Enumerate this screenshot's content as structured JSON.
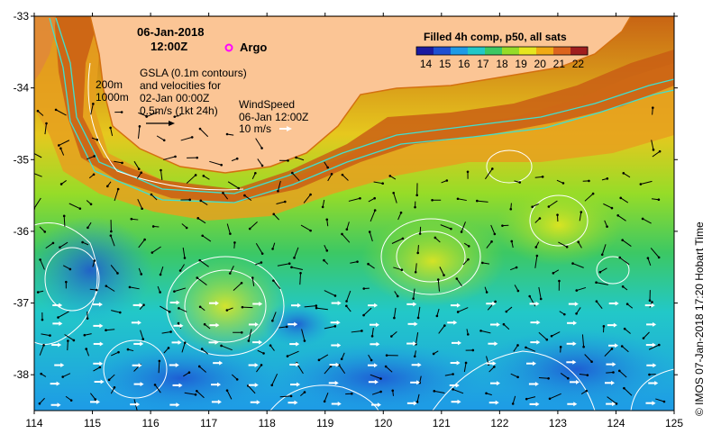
{
  "map": {
    "date": "06-Jan-2018",
    "time": "12:00Z",
    "argo_label": "Argo",
    "gsla_lines": [
      "GSLA (0.1m contours)",
      "and velocities for",
      "02-Jan 00:00Z",
      "0.5m/s (1kt 24h)"
    ],
    "depth_labels": [
      "200m",
      "1000m"
    ],
    "wind_lines": [
      "WindSpeed",
      "06-Jan 12:00Z",
      "10 m/s"
    ],
    "colorbar_title": "Filled 4h comp, p50, all sats",
    "colorbar_ticks": [
      "14",
      "15",
      "16",
      "17",
      "18",
      "19",
      "20",
      "21",
      "22"
    ],
    "colorbar_colors": [
      "#1a1aa0",
      "#1e50d2",
      "#1e9be6",
      "#22c8c8",
      "#3cc864",
      "#96dc28",
      "#e6e61e",
      "#f0aa14",
      "#dc641e",
      "#a01e1e"
    ],
    "credit": "© IMOS 07-Jan-2018 17:20 Hobart Time",
    "colors": {
      "land": "#fbc595",
      "coast": "#d47010",
      "contour": "#ffffff",
      "isobath": "#40e0d0",
      "argo": "#ff00ff"
    }
  },
  "chart_data": {
    "type": "heatmap",
    "title": "Filled 4h comp, p50, all sats",
    "xlim": [
      114,
      125
    ],
    "ylim": [
      -38.5,
      -33
    ],
    "x_ticks": [
      "114",
      "115",
      "116",
      "117",
      "118",
      "119",
      "120",
      "121",
      "122",
      "123",
      "124",
      "125"
    ],
    "y_ticks": [
      "-33",
      "-34",
      "-35",
      "-36",
      "-37",
      "-38"
    ],
    "colorscale_range": [
      13.5,
      22.5
    ],
    "argo_float": {
      "lon": 117.3,
      "lat": -33.4
    }
  }
}
